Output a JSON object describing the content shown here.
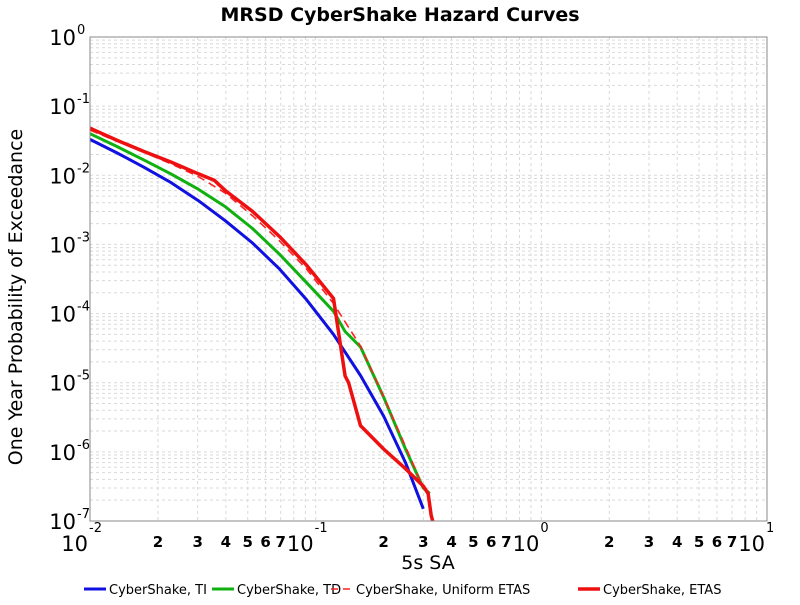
{
  "chart_data": {
    "type": "line",
    "title": "MRSD CyberShake Hazard Curves",
    "xlabel": "5s SA",
    "ylabel": "One Year Probability of Exceedance",
    "xscale": "log",
    "yscale": "log",
    "xlim": [
      0.01,
      10
    ],
    "ylim": [
      1e-07,
      1
    ],
    "grid": true,
    "legend_position": "bottom",
    "x_major_ticks": [
      {
        "value": 0.01,
        "base": "10",
        "exp": "-2"
      },
      {
        "value": 0.1,
        "base": "10",
        "exp": "-1"
      },
      {
        "value": 1,
        "base": "10",
        "exp": "0"
      },
      {
        "value": 10,
        "base": "10",
        "exp": "1"
      }
    ],
    "x_minor_tick_labels": [
      "2",
      "3",
      "4",
      "5",
      "6",
      "7"
    ],
    "y_major_ticks": [
      {
        "value": 1,
        "base": "10",
        "exp": "0"
      },
      {
        "value": 0.1,
        "base": "10",
        "exp": "-1"
      },
      {
        "value": 0.01,
        "base": "10",
        "exp": "-2"
      },
      {
        "value": 0.001,
        "base": "10",
        "exp": "-3"
      },
      {
        "value": 0.0001,
        "base": "10",
        "exp": "-4"
      },
      {
        "value": 1e-05,
        "base": "10",
        "exp": "-5"
      },
      {
        "value": 1e-06,
        "base": "10",
        "exp": "-6"
      },
      {
        "value": 1e-07,
        "base": "10",
        "exp": "-7"
      }
    ],
    "series": [
      {
        "name": "CyberShake, TI",
        "color": "#1010e0",
        "dash": "solid",
        "width": 3,
        "x": [
          0.01,
          0.0132,
          0.0174,
          0.0229,
          0.0302,
          0.0398,
          0.0525,
          0.0692,
          0.0912,
          0.12,
          0.158,
          0.2,
          0.25,
          0.3
        ],
        "y": [
          0.033,
          0.021,
          0.013,
          0.0078,
          0.0043,
          0.0022,
          0.00105,
          0.00044,
          0.000158,
          5e-05,
          1.27e-05,
          3.3e-06,
          7e-07,
          1.5e-07
        ]
      },
      {
        "name": "CyberShake, TD",
        "color": "#10b010",
        "dash": "solid",
        "width": 3,
        "x": [
          0.01,
          0.0132,
          0.0174,
          0.0229,
          0.0302,
          0.0398,
          0.0525,
          0.0692,
          0.0912,
          0.12,
          0.135,
          0.158,
          0.2,
          0.25,
          0.3,
          0.32
        ],
        "y": [
          0.04,
          0.026,
          0.0165,
          0.0104,
          0.0063,
          0.0035,
          0.0017,
          0.00072,
          0.00028,
          0.000108,
          5.5e-05,
          3.3e-05,
          6.2e-06,
          1.1e-06,
          3e-07,
          2.5e-07
        ]
      },
      {
        "name": "CyberShake, Uniform ETAS",
        "color": "#ff2020",
        "dash": "dashed",
        "width": 1.6,
        "x": [
          0.01,
          0.0132,
          0.0174,
          0.0229,
          0.0302,
          0.0398,
          0.0525,
          0.0692,
          0.0912,
          0.12,
          0.14,
          0.158,
          0.2,
          0.25,
          0.3,
          0.315
        ],
        "y": [
          0.045,
          0.031,
          0.0214,
          0.0146,
          0.0096,
          0.0055,
          0.0026,
          0.00112,
          0.00044,
          0.00014,
          6.3e-05,
          3.4e-05,
          6.3e-06,
          1.2e-06,
          3e-07,
          2.5e-07
        ]
      },
      {
        "name": "CyberShake, ETAS",
        "color": "#ee1010",
        "dash": "solid",
        "width": 3.5,
        "x": [
          0.01,
          0.0132,
          0.0174,
          0.0229,
          0.0302,
          0.0355,
          0.0398,
          0.0525,
          0.0692,
          0.0912,
          0.12,
          0.135,
          0.14,
          0.158,
          0.2,
          0.25,
          0.3,
          0.315,
          0.325,
          0.33
        ],
        "y": [
          0.048,
          0.032,
          0.022,
          0.0155,
          0.0105,
          0.0085,
          0.006,
          0.003,
          0.0013,
          0.0005,
          0.000165,
          1.25e-05,
          1e-05,
          2.4e-06,
          1.1e-06,
          5.7e-07,
          3.2e-07,
          2.5e-07,
          1.2e-07,
          1e-07
        ]
      }
    ]
  }
}
